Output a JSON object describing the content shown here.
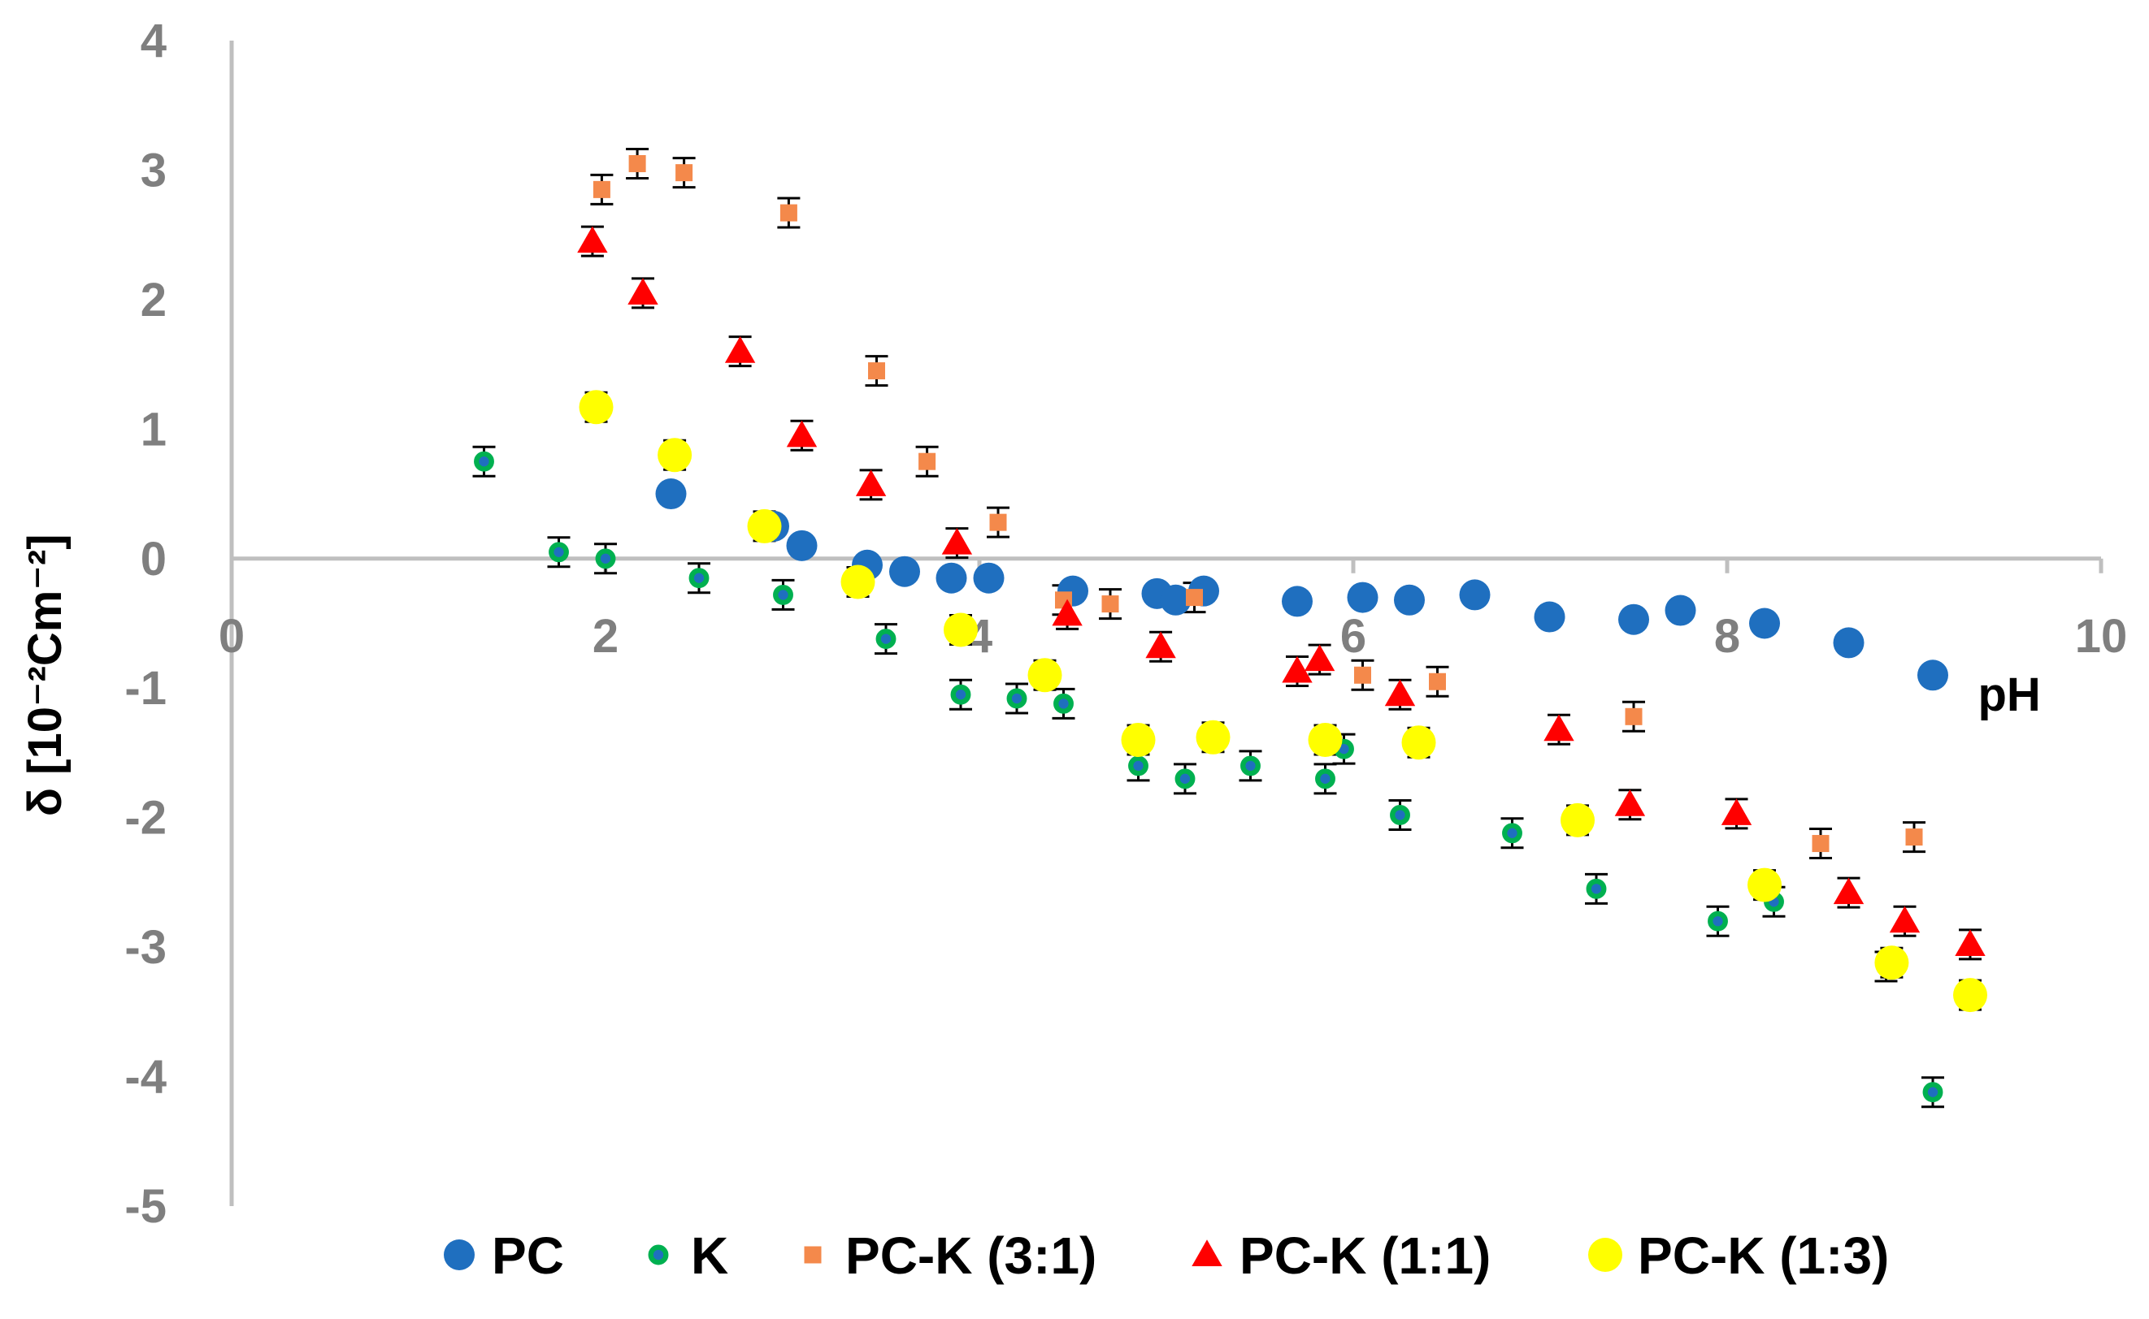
{
  "chart_data": {
    "type": "scatter",
    "xlabel": "pH",
    "ylabel": "δ [10⁻²Cm⁻²]",
    "xlim": [
      0,
      10
    ],
    "ylim": [
      -5,
      4
    ],
    "xticks": [
      "0",
      "2",
      "4",
      "6",
      "8",
      "10"
    ],
    "yticks": [
      "4",
      "3",
      "2",
      "1",
      "0",
      "-1",
      "-2",
      "-3",
      "-4",
      "-5"
    ],
    "grid": false,
    "legend_position": "bottom",
    "series": [
      {
        "name": "PC",
        "marker": "circle",
        "color": "#1f6fbf",
        "points": [
          [
            2.35,
            0.5
          ],
          [
            2.9,
            0.25
          ],
          [
            3.05,
            0.1
          ],
          [
            3.4,
            -0.05
          ],
          [
            3.6,
            -0.1
          ],
          [
            3.85,
            -0.15
          ],
          [
            4.05,
            -0.15
          ],
          [
            4.5,
            -0.25
          ],
          [
            4.95,
            -0.27
          ],
          [
            5.05,
            -0.32
          ],
          [
            5.2,
            -0.25
          ],
          [
            5.7,
            -0.33
          ],
          [
            6.05,
            -0.3
          ],
          [
            6.3,
            -0.32
          ],
          [
            6.65,
            -0.28
          ],
          [
            7.05,
            -0.45
          ],
          [
            7.5,
            -0.47
          ],
          [
            7.75,
            -0.4
          ],
          [
            8.2,
            -0.5
          ],
          [
            8.65,
            -0.65
          ],
          [
            9.1,
            -0.9
          ]
        ]
      },
      {
        "name": "K",
        "marker": "circle-small",
        "color": "#00b050",
        "points": [
          [
            1.35,
            0.75
          ],
          [
            1.75,
            0.05
          ],
          [
            2.0,
            0.0
          ],
          [
            2.5,
            -0.15
          ],
          [
            2.95,
            -0.28
          ],
          [
            3.5,
            -0.62
          ],
          [
            3.9,
            -1.05
          ],
          [
            4.2,
            -1.08
          ],
          [
            4.45,
            -1.12
          ],
          [
            4.85,
            -1.6
          ],
          [
            5.1,
            -1.7
          ],
          [
            5.45,
            -1.6
          ],
          [
            5.85,
            -1.7
          ],
          [
            5.95,
            -1.47
          ],
          [
            6.25,
            -1.98
          ],
          [
            6.85,
            -2.12
          ],
          [
            7.3,
            -2.55
          ],
          [
            7.95,
            -2.8
          ],
          [
            8.25,
            -2.65
          ],
          [
            8.85,
            -3.15
          ],
          [
            9.1,
            -4.12
          ]
        ]
      },
      {
        "name": "PC-K (3:1)",
        "marker": "square",
        "color": "#f4894b",
        "points": [
          [
            1.98,
            2.85
          ],
          [
            2.17,
            3.05
          ],
          [
            2.42,
            2.98
          ],
          [
            2.98,
            2.67
          ],
          [
            3.45,
            1.45
          ],
          [
            3.72,
            0.75
          ],
          [
            4.1,
            0.28
          ],
          [
            4.45,
            -0.32
          ],
          [
            4.7,
            -0.35
          ],
          [
            5.15,
            -0.3
          ],
          [
            6.05,
            -0.9
          ],
          [
            6.45,
            -0.95
          ],
          [
            7.5,
            -1.22
          ],
          [
            8.5,
            -2.2
          ],
          [
            9.0,
            -2.15
          ]
        ]
      },
      {
        "name": "PC-K (1:1)",
        "marker": "triangle",
        "color": "#ff0000",
        "points": [
          [
            1.93,
            2.45
          ],
          [
            2.2,
            2.05
          ],
          [
            2.72,
            1.6
          ],
          [
            3.05,
            0.95
          ],
          [
            3.42,
            0.57
          ],
          [
            3.88,
            0.12
          ],
          [
            4.47,
            -0.43
          ],
          [
            4.97,
            -0.68
          ],
          [
            5.7,
            -0.87
          ],
          [
            5.82,
            -0.78
          ],
          [
            6.25,
            -1.05
          ],
          [
            7.1,
            -1.32
          ],
          [
            7.48,
            -1.9
          ],
          [
            8.05,
            -1.97
          ],
          [
            8.65,
            -2.58
          ],
          [
            8.95,
            -2.8
          ],
          [
            9.3,
            -2.98
          ]
        ]
      },
      {
        "name": "PC-K (1:3)",
        "marker": "circle",
        "color": "#ffff00",
        "points": [
          [
            1.95,
            1.17
          ],
          [
            2.37,
            0.8
          ],
          [
            2.85,
            0.25
          ],
          [
            3.35,
            -0.18
          ],
          [
            3.9,
            -0.55
          ],
          [
            4.35,
            -0.9
          ],
          [
            4.85,
            -1.4
          ],
          [
            5.25,
            -1.38
          ],
          [
            5.85,
            -1.4
          ],
          [
            6.35,
            -1.42
          ],
          [
            7.2,
            -2.02
          ],
          [
            8.2,
            -2.52
          ],
          [
            8.88,
            -3.12
          ],
          [
            9.3,
            -3.37
          ]
        ]
      }
    ]
  }
}
